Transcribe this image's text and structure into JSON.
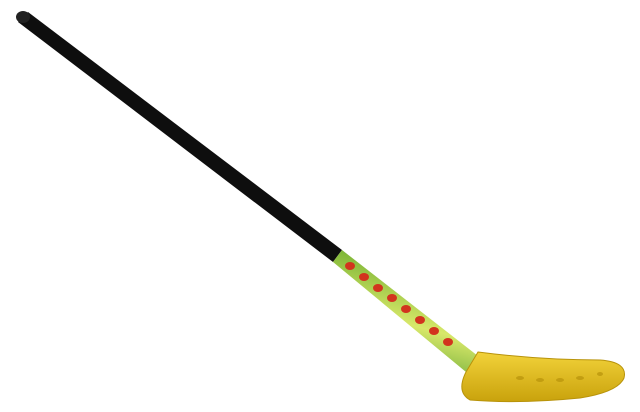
{
  "image": {
    "subject": "hockey-stick",
    "colors": {
      "background": "#ffffff",
      "shaft": "#1a1a1a",
      "grip_section": "#9cc43a",
      "lettering": "#d2341e",
      "blade": "#e6c21a"
    }
  }
}
